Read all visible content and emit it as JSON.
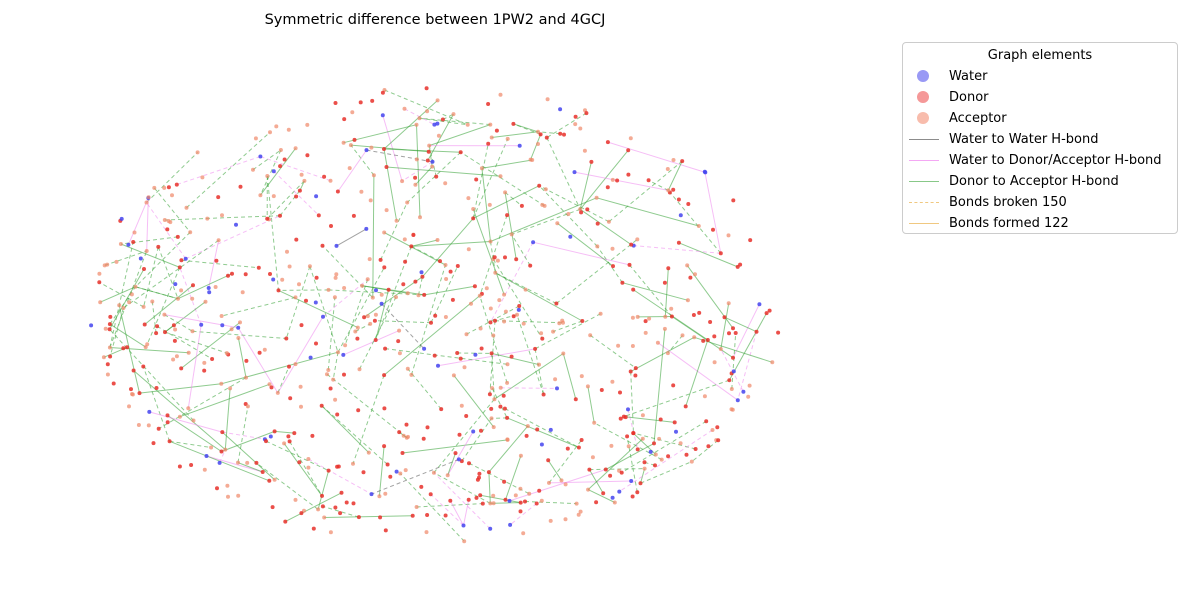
{
  "title": "Symmetric difference between 1PW2 and 4GCJ",
  "legend": {
    "title": "Graph elements",
    "items": [
      {
        "label": "Water",
        "kind": "dot",
        "color": "#9999f5"
      },
      {
        "label": "Donor",
        "kind": "dot",
        "color": "#f59898"
      },
      {
        "label": "Acceptor",
        "kind": "dot",
        "color": "#f8bcac"
      },
      {
        "label": "Water to Water H-bond",
        "kind": "line",
        "color": "#8c8c8c",
        "style": "solid"
      },
      {
        "label": "Water to Donor/Acceptor H-bond",
        "kind": "line",
        "color": "#f4a8f4",
        "style": "solid"
      },
      {
        "label": "Donor to Acceptor H-bond",
        "kind": "line",
        "color": "#88c888",
        "style": "solid"
      },
      {
        "label": "Bonds broken 150",
        "kind": "line",
        "color": "#f8d8a8",
        "style": "dashed"
      },
      {
        "label": "Bonds formed 122",
        "kind": "line",
        "color": "#f8d8a8",
        "style": "solid"
      }
    ]
  },
  "colors": {
    "water": "#4444ee",
    "donor": "#e8302a",
    "acceptor": "#f08868",
    "ww_bond": "#555555",
    "wda_bond": "#ee88ee",
    "da_bond": "#33a033"
  }
}
